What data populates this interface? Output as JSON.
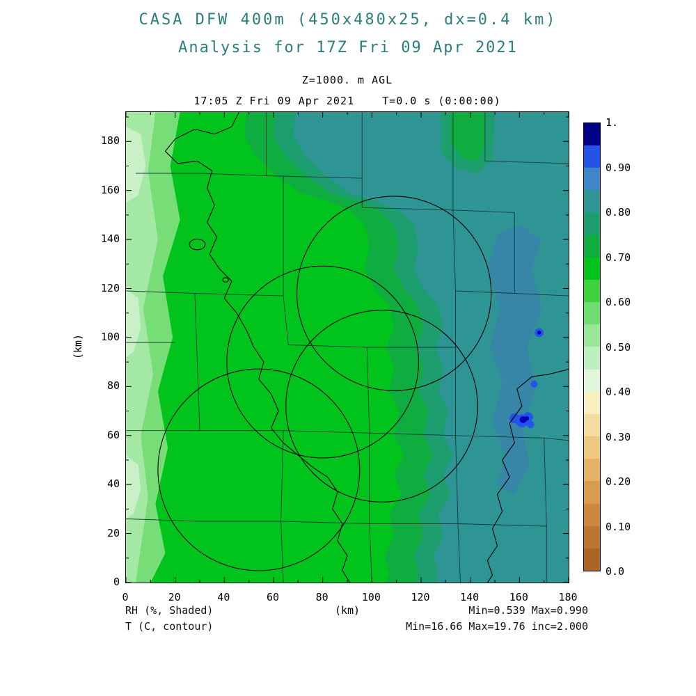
{
  "header": {
    "title": "CASA DFW 400m (450x480x25, dx=0.4 km)",
    "subtitle": "Analysis for 17Z Fri 09 Apr 2021",
    "level": "Z=1000. m AGL",
    "timestamp": "17:05 Z Fri 09 Apr 2021    T=0.0 s (0:00:00)"
  },
  "footer": {
    "shaded_label": "RH (%, Shaded)",
    "contour_label": "T (C, contour)",
    "x_axis_unit": "(km)",
    "shaded_stats": "Min=0.539 Max=0.990",
    "contour_stats": "Min=16.66 Max=19.76 inc=2.000"
  },
  "chart_data": {
    "type": "heatmap",
    "title": "CASA DFW 400m (450x480x25, dx=0.4 km)",
    "subtitle": "Analysis for 17Z Fri 09 Apr 2021",
    "shaded_variable": "RH (%, Shaded)",
    "contour_variable": "T (C, contour)",
    "level_label": "Z=1000. m AGL",
    "valid_time": "17:05 Z Fri 09 Apr 2021",
    "forecast_time": "T=0.0 s (0:00:00)",
    "xlabel": "(km)",
    "ylabel": "(km)",
    "xlim": [
      0,
      180
    ],
    "ylim": [
      0,
      192
    ],
    "x_ticks": [
      0,
      20,
      40,
      60,
      80,
      100,
      120,
      140,
      160,
      180
    ],
    "x_minor_ticks": [
      10,
      30,
      50,
      70,
      90,
      110,
      130,
      150,
      170
    ],
    "y_ticks": [
      0,
      20,
      40,
      60,
      80,
      100,
      120,
      140,
      160,
      180
    ],
    "y_minor_ticks": [
      10,
      30,
      50,
      70,
      90,
      110,
      130,
      150,
      170,
      190
    ],
    "stats": {
      "rh_min": 0.539,
      "rh_max": 0.99,
      "t_min": 16.66,
      "t_max": 19.76,
      "t_contour_interval": 2.0
    },
    "colorbar": {
      "tick_labels": [
        "0.0",
        "0.10",
        "0.20",
        "0.30",
        "0.40",
        "0.50",
        "0.60",
        "0.70",
        "0.80",
        "0.90",
        "1."
      ],
      "colors": [
        "#AC6424",
        "#BC7630",
        "#CB883E",
        "#D89C50",
        "#E4B264",
        "#EDC87E",
        "#F3DC9E",
        "#F7EFC0",
        "#E2F6DC",
        "#BEEFBE",
        "#98E698",
        "#6FDC6F",
        "#3FD23F",
        "#00C41C",
        "#0FAC3F",
        "#1D9E6E",
        "#2E9494",
        "#3E86C8",
        "#2353E8",
        "#00008B"
      ]
    },
    "field": {
      "base_color": "#00C41C",
      "county_color": "#143C3C",
      "west_regions": [
        {
          "color": "#77DE77",
          "pts": [
            [
              0,
              192
            ],
            [
              22,
              192
            ],
            [
              18,
              170
            ],
            [
              22,
              148
            ],
            [
              15,
              125
            ],
            [
              19,
              100
            ],
            [
              13,
              78
            ],
            [
              17,
              55
            ],
            [
              12,
              32
            ],
            [
              16,
              12
            ],
            [
              10,
              0
            ],
            [
              0,
              0
            ]
          ]
        },
        {
          "color": "#A3E8A3",
          "pts": [
            [
              0,
              192
            ],
            [
              12,
              192
            ],
            [
              9,
              168
            ],
            [
              13,
              140
            ],
            [
              7,
              112
            ],
            [
              11,
              85
            ],
            [
              6,
              60
            ],
            [
              9,
              35
            ],
            [
              4,
              0
            ],
            [
              0,
              0
            ]
          ]
        },
        {
          "color": "#C8F1C8",
          "pts": [
            [
              0,
              186
            ],
            [
              6,
              183
            ],
            [
              8,
              170
            ],
            [
              5,
              158
            ],
            [
              0,
              155
            ]
          ]
        },
        {
          "color": "#C8F1C8",
          "pts": [
            [
              0,
              120
            ],
            [
              5,
              116
            ],
            [
              6,
              104
            ],
            [
              3,
              94
            ],
            [
              0,
              92
            ]
          ]
        },
        {
          "color": "#C8F1C8",
          "pts": [
            [
              0,
              52
            ],
            [
              5,
              48
            ],
            [
              6,
              38
            ],
            [
              3,
              28
            ],
            [
              0,
              26
            ]
          ]
        }
      ],
      "teal_boundary": [
        [
          69,
          192
        ],
        [
          68,
          182
        ],
        [
          73,
          174
        ],
        [
          81,
          166
        ],
        [
          91,
          159
        ],
        [
          101,
          156
        ],
        [
          111,
          152
        ],
        [
          117,
          146
        ],
        [
          119,
          137
        ],
        [
          117,
          128
        ],
        [
          121,
          120
        ],
        [
          127,
          113
        ],
        [
          129,
          104
        ],
        [
          126,
          96
        ],
        [
          129,
          88
        ],
        [
          127,
          78
        ],
        [
          131,
          70
        ],
        [
          129,
          60
        ],
        [
          133,
          52
        ],
        [
          129,
          44
        ],
        [
          132,
          36
        ],
        [
          127,
          28
        ],
        [
          129,
          19
        ],
        [
          125,
          11
        ],
        [
          127,
          4
        ],
        [
          126,
          0
        ]
      ],
      "east_layers": [
        {
          "color": "#0FAC3F",
          "offset": 20
        },
        {
          "color": "#1D9E6E",
          "offset": 8
        },
        {
          "color": "#2E9494",
          "offset": 0
        }
      ],
      "patch_regions": [
        {
          "color": "#1D9E6E",
          "pts": [
            [
              128,
              192
            ],
            [
              128,
              176
            ],
            [
              134,
              169
            ],
            [
              143,
              167
            ],
            [
              149,
              173
            ],
            [
              150,
              192
            ]
          ]
        },
        {
          "color": "#0FAC3F",
          "pts": [
            [
              132,
              192
            ],
            [
              132,
              179
            ],
            [
              137,
              173
            ],
            [
              143,
              172
            ],
            [
              146,
              178
            ],
            [
              146,
              192
            ]
          ]
        },
        {
          "color": "#3786A8",
          "pts": [
            [
              151,
              142
            ],
            [
              147,
              128
            ],
            [
              152,
              112
            ],
            [
              148,
              96
            ],
            [
              153,
              82
            ],
            [
              149,
              66
            ],
            [
              154,
              52
            ],
            [
              151,
              40
            ],
            [
              158,
              36
            ],
            [
              164,
              48
            ],
            [
              161,
              64
            ],
            [
              167,
              80
            ],
            [
              163,
              96
            ],
            [
              169,
              112
            ],
            [
              165,
              128
            ],
            [
              169,
              140
            ],
            [
              160,
              146
            ]
          ]
        }
      ],
      "blue_spots": [
        {
          "cx": 158,
          "cy": 67,
          "r": 2.0,
          "color": "#2353E8"
        },
        {
          "cx": 161,
          "cy": 66,
          "r": 2.6,
          "color": "#2353E8"
        },
        {
          "cx": 163.5,
          "cy": 67.5,
          "r": 2.0,
          "color": "#2353E8"
        },
        {
          "cx": 164.5,
          "cy": 64.5,
          "r": 1.5,
          "color": "#2353E8"
        },
        {
          "cx": 161.5,
          "cy": 66.5,
          "r": 1.4,
          "color": "#0000B4"
        },
        {
          "cx": 163,
          "cy": 67,
          "r": 0.9,
          "color": "#0000B4"
        },
        {
          "cx": 168,
          "cy": 102,
          "r": 1.8,
          "color": "#2353E8"
        },
        {
          "cx": 168,
          "cy": 102,
          "r": 0.8,
          "color": "#0000B4"
        },
        {
          "cx": 166,
          "cy": 81,
          "r": 1.4,
          "color": "#2353E8"
        }
      ],
      "county_lines": [
        [
          [
            4,
            167
          ],
          [
            30,
            167
          ],
          [
            57,
            166
          ],
          [
            96,
            165
          ]
        ],
        [
          [
            57,
            192
          ],
          [
            57,
            166
          ]
        ],
        [
          [
            96,
            192
          ],
          [
            96,
            153
          ]
        ],
        [
          [
            96,
            153
          ],
          [
            133,
            152
          ],
          [
            158,
            151
          ]
        ],
        [
          [
            133,
            192
          ],
          [
            133,
            152
          ]
        ],
        [
          [
            146,
            192
          ],
          [
            146,
            172
          ],
          [
            180,
            171
          ]
        ],
        [
          [
            158,
            151
          ],
          [
            158,
            118
          ]
        ],
        [
          [
            133,
            152
          ],
          [
            134,
            119
          ],
          [
            134,
            96
          ],
          [
            134,
            60
          ],
          [
            135,
            24
          ],
          [
            136,
            0
          ]
        ],
        [
          [
            134,
            119
          ],
          [
            158,
            118
          ],
          [
            180,
            117
          ]
        ],
        [
          [
            0,
            119
          ],
          [
            28,
            118
          ],
          [
            64,
            117
          ]
        ],
        [
          [
            64,
            166
          ],
          [
            64,
            117
          ],
          [
            66,
            97
          ]
        ],
        [
          [
            0,
            98
          ],
          [
            20,
            98
          ]
        ],
        [
          [
            28,
            118
          ],
          [
            30,
            62
          ]
        ],
        [
          [
            0,
            62
          ],
          [
            30,
            62
          ],
          [
            64,
            62
          ]
        ],
        [
          [
            66,
            97
          ],
          [
            98,
            96
          ],
          [
            134,
            96
          ]
        ],
        [
          [
            98,
            96
          ],
          [
            99,
            61
          ],
          [
            99,
            24
          ],
          [
            100,
            0
          ]
        ],
        [
          [
            64,
            62
          ],
          [
            99,
            61
          ],
          [
            134,
            60
          ]
        ],
        [
          [
            64,
            62
          ],
          [
            63,
            25
          ],
          [
            64,
            0
          ]
        ],
        [
          [
            0,
            26
          ],
          [
            30,
            25
          ],
          [
            63,
            25
          ],
          [
            99,
            24
          ],
          [
            135,
            24
          ]
        ],
        [
          [
            135,
            24
          ],
          [
            171,
            23
          ],
          [
            171,
            0
          ]
        ],
        [
          [
            134,
            60
          ],
          [
            170,
            59
          ],
          [
            180,
            58
          ]
        ],
        [
          [
            170,
            59
          ],
          [
            171,
            23
          ]
        ]
      ],
      "contours": [
        {
          "pts": [
            [
              46,
              192
            ],
            [
              43,
              186
            ],
            [
              36,
              183
            ],
            [
              28,
              185
            ],
            [
              20,
              181
            ],
            [
              16,
              176
            ],
            [
              21,
              171
            ],
            [
              29,
              172
            ],
            [
              35,
              168
            ],
            [
              33,
              161
            ],
            [
              36,
              154
            ],
            [
              33,
              147
            ],
            [
              37,
              141
            ],
            [
              34,
              134
            ],
            [
              38,
              128
            ],
            [
              43,
              123
            ],
            [
              40,
              116
            ],
            [
              45,
              110
            ],
            [
              49,
              103
            ],
            [
              52,
              96
            ],
            [
              56,
              90
            ],
            [
              54,
              83
            ],
            [
              59,
              77
            ],
            [
              62,
              70
            ],
            [
              59,
              63
            ],
            [
              64,
              57
            ],
            [
              70,
              52
            ],
            [
              76,
              47
            ],
            [
              82,
              43
            ],
            [
              86,
              37
            ],
            [
              84,
              30
            ],
            [
              88,
              24
            ],
            [
              86,
              17
            ],
            [
              90,
              11
            ],
            [
              88,
              5
            ],
            [
              91,
              0
            ]
          ]
        },
        {
          "pts": [
            [
              180,
              87
            ],
            [
              172,
              85
            ],
            [
              165,
              84
            ],
            [
              159,
              79
            ],
            [
              161,
              72
            ],
            [
              156,
              65
            ],
            [
              158,
              57
            ],
            [
              153,
              50
            ],
            [
              156,
              43
            ],
            [
              151,
              36
            ],
            [
              153,
              29
            ],
            [
              149,
              22
            ],
            [
              151,
              15
            ],
            [
              147,
              9
            ],
            [
              149,
              3
            ],
            [
              147,
              0
            ]
          ]
        }
      ],
      "contour_loops": [
        {
          "cx": 29,
          "cy": 138,
          "rx": 3.2,
          "ry": 2.2
        },
        {
          "cx": 40.5,
          "cy": 123.5,
          "rx": 1.2,
          "ry": 0.9
        }
      ],
      "radar_circles": [
        {
          "cx": 109,
          "cy": 118,
          "r": 39.5
        },
        {
          "cx": 80,
          "cy": 90,
          "r": 39
        },
        {
          "cx": 54,
          "cy": 46,
          "r": 41
        },
        {
          "cx": 104,
          "cy": 72,
          "r": 39
        }
      ]
    }
  }
}
